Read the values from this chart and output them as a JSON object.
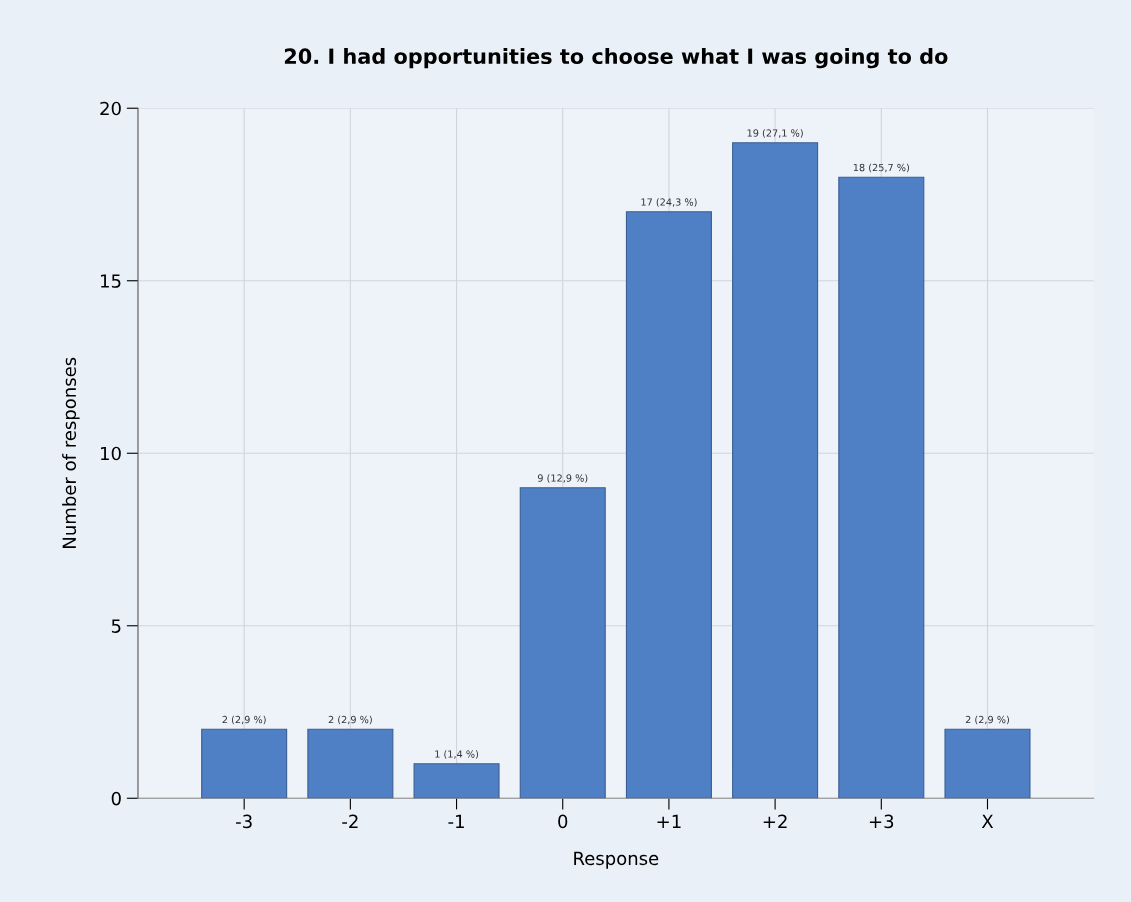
{
  "chart_data": {
    "type": "bar",
    "title": "20. I had opportunities to choose what I was going to do",
    "xlabel": "Response",
    "ylabel": "Number of responses",
    "categories": [
      "-3",
      "-2",
      "-1",
      "0",
      "+1",
      "+2",
      "+3",
      "X"
    ],
    "values": [
      2,
      2,
      1,
      9,
      17,
      19,
      18,
      2
    ],
    "value_labels": [
      "2 (2,9 %)",
      "2 (2,9 %)",
      "1 (1,4 %)",
      "9 (12,9 %)",
      "17 (24,3 %)",
      "19 (27,1 %)",
      "18 (25,7 %)",
      "2 (2,9 %)"
    ],
    "color": "#4f7fc4",
    "ylim": [
      0,
      20
    ],
    "yticks": [
      0,
      5,
      10,
      15,
      20
    ],
    "grid": true,
    "legend": false
  }
}
